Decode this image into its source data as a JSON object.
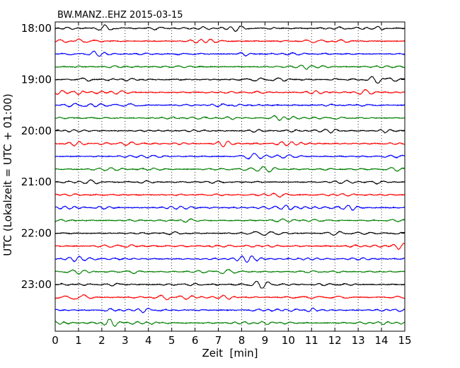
{
  "chart_data": {
    "type": "line",
    "title": "BW.MANZ..EHZ 2015-03-15",
    "xlabel": "Zeit  [min]",
    "ylabel": "UTC (Lokalzeit = UTC + 01:00)",
    "xlim": [
      0,
      15
    ],
    "x_ticks": [
      "0",
      "1",
      "2",
      "3",
      "4",
      "5",
      "6",
      "7",
      "8",
      "9",
      "10",
      "11",
      "12",
      "13",
      "14",
      "15"
    ],
    "y_ticks": [
      "18:00",
      "19:00",
      "20:00",
      "21:00",
      "22:00",
      "23:00"
    ],
    "y_tick_trace_index": [
      0,
      4,
      8,
      12,
      16,
      20
    ],
    "vertical_grid": true,
    "trace_count": 24,
    "trace_interval_min": 15,
    "series_colors": [
      "#000000",
      "#ff0000",
      "#0000ff",
      "#007f00"
    ]
  }
}
